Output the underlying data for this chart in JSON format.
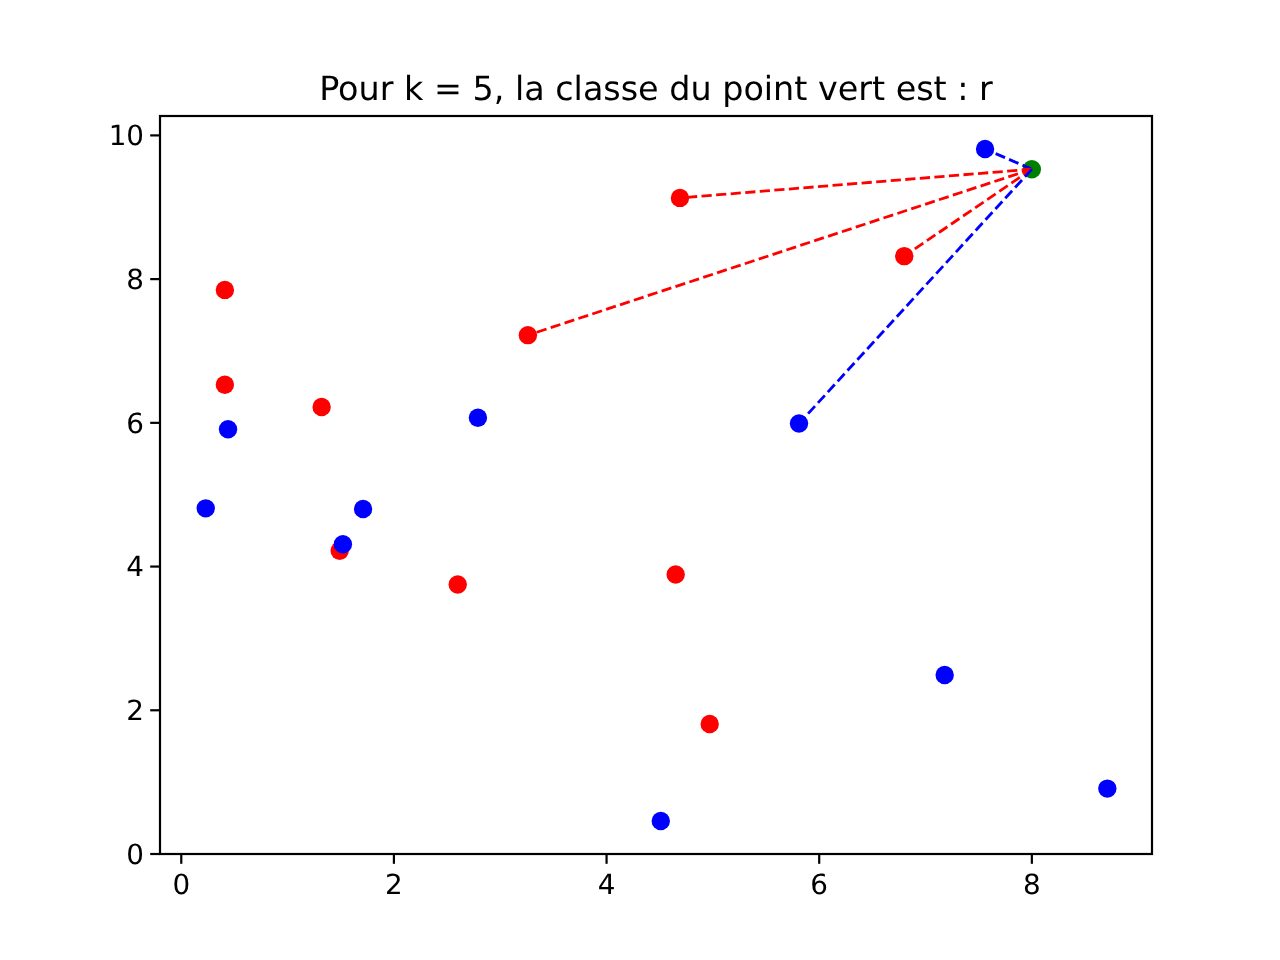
{
  "chart_data": {
    "type": "scatter",
    "title": "Pour k = 5, la classe du point vert est : r",
    "xlim": [
      -0.2,
      9.13
    ],
    "ylim": [
      0,
      10.27
    ],
    "xticks": [
      0,
      2,
      4,
      6,
      8
    ],
    "yticks": [
      0,
      2,
      4,
      6,
      8,
      10
    ],
    "marker": "circle",
    "series": [
      {
        "color": "#ff0000",
        "x": [
          0.41,
          0.41,
          1.32,
          1.49,
          2.6,
          3.26,
          4.69,
          4.65,
          4.97,
          6.8
        ],
        "values": [
          7.85,
          6.53,
          6.22,
          4.22,
          3.75,
          7.22,
          9.13,
          3.89,
          1.81,
          8.32
        ]
      },
      {
        "color": "#0000ff",
        "x": [
          0.23,
          0.44,
          1.52,
          1.71,
          2.79,
          4.51,
          5.81,
          7.18,
          8.71,
          7.56
        ],
        "values": [
          4.81,
          5.91,
          4.31,
          4.8,
          6.07,
          0.46,
          5.99,
          2.49,
          0.91,
          9.81
        ]
      },
      {
        "color": "#008000",
        "x": [
          8.0
        ],
        "values": [
          9.53
        ]
      },
      {
        "type": "line",
        "line_style": "dashed",
        "marker": "none",
        "color": "#0000ff",
        "x": [
          8.0,
          7.56
        ],
        "values": [
          9.53,
          9.81
        ]
      },
      {
        "type": "line",
        "line_style": "dashed",
        "marker": "none",
        "color": "#ff0000",
        "x": [
          8.0,
          4.69
        ],
        "values": [
          9.53,
          9.13
        ]
      },
      {
        "type": "line",
        "line_style": "dashed",
        "marker": "none",
        "color": "#ff0000",
        "x": [
          8.0,
          3.26
        ],
        "values": [
          9.53,
          7.22
        ]
      },
      {
        "type": "line",
        "line_style": "dashed",
        "marker": "none",
        "color": "#ff0000",
        "x": [
          8.0,
          6.8
        ],
        "values": [
          9.53,
          8.32
        ]
      },
      {
        "type": "line",
        "line_style": "dashed",
        "marker": "none",
        "color": "#0000ff",
        "x": [
          8.0,
          5.81
        ],
        "values": [
          9.53,
          5.99
        ]
      }
    ]
  }
}
